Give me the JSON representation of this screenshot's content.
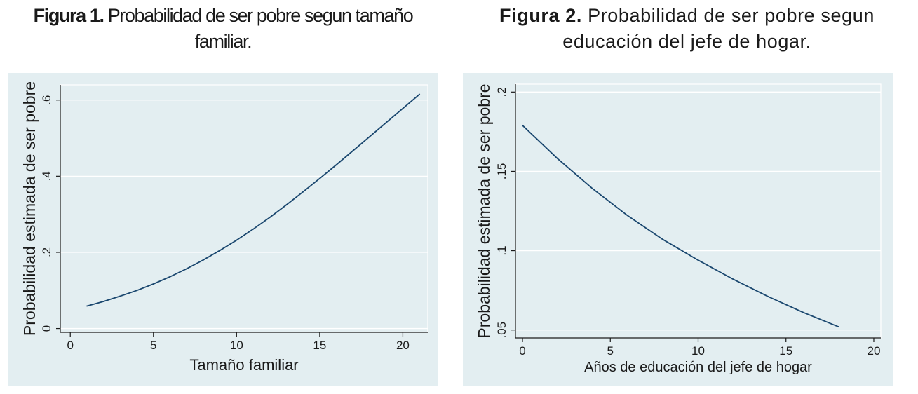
{
  "figures": [
    {
      "label": "Figura 1.",
      "title_rest": "Probabilidad de ser pobre segun tamaño",
      "title_line2": "familiar."
    },
    {
      "label": "Figura 2.",
      "title_rest": "Probabilidad de ser pobre segun",
      "title_line2": "educación del jefe de hogar."
    }
  ],
  "chart_data": [
    {
      "type": "line",
      "title": "Figura 1. Probabilidad de ser pobre segun tamaño familiar.",
      "xlabel": "Tamaño familiar",
      "ylabel": "Probabilidad estimada de ser pobre",
      "xlim": [
        -0.6,
        21.5
      ],
      "ylim": [
        -0.01,
        0.64
      ],
      "xticks": [
        0,
        5,
        10,
        15,
        20
      ],
      "xtick_labels": [
        "0",
        "5",
        "10",
        "15",
        "20"
      ],
      "yticks": [
        0,
        0.2,
        0.4,
        0.6
      ],
      "ytick_labels": [
        "0",
        ".2",
        ".4",
        ".6"
      ],
      "grid": true,
      "background": "#e3eef1",
      "line_color": "#1a476f",
      "x": [
        1,
        2,
        3,
        4,
        5,
        6,
        7,
        8,
        9,
        10,
        11,
        12,
        13,
        14,
        15,
        16,
        17,
        18,
        19,
        20,
        21
      ],
      "y": [
        0.059,
        0.071,
        0.085,
        0.1,
        0.117,
        0.136,
        0.157,
        0.18,
        0.205,
        0.232,
        0.261,
        0.292,
        0.325,
        0.359,
        0.394,
        0.43,
        0.467,
        0.504,
        0.541,
        0.578,
        0.615
      ]
    },
    {
      "type": "line",
      "title": "Figura 2. Probabilidad de ser pobre segun educación del jefe de hogar.",
      "xlabel": "Años de educación del jefe de hogar",
      "ylabel": "Probabilidad estimada de ser pobre",
      "xlim": [
        -0.4,
        20.4
      ],
      "ylim": [
        0.045,
        0.205
      ],
      "xticks": [
        0,
        5,
        10,
        15,
        20
      ],
      "xtick_labels": [
        "0",
        "5",
        "10",
        "15",
        "20"
      ],
      "yticks": [
        0.05,
        0.1,
        0.15,
        0.2
      ],
      "ytick_labels": [
        ".05",
        ".1",
        ".15",
        ".2"
      ],
      "grid": true,
      "background": "#e3eef1",
      "line_color": "#1a476f",
      "x": [
        0,
        2,
        4,
        6,
        8,
        10,
        12,
        14,
        16,
        18
      ],
      "y": [
        0.179,
        0.158,
        0.139,
        0.122,
        0.107,
        0.094,
        0.082,
        0.071,
        0.061,
        0.052
      ]
    }
  ]
}
